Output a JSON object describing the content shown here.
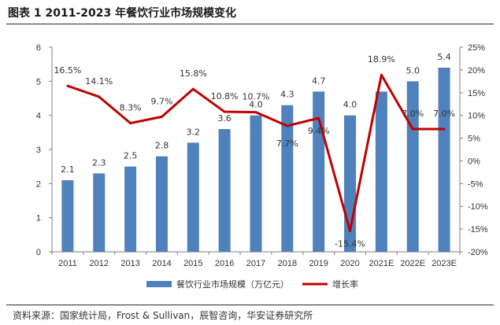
{
  "page": {
    "title": "图表 1 2011-2023 年餐饮行业市场规模变化",
    "source": "资料来源：国家统计局，Frost & Sullivan，辰智咨询，华安证券研究所"
  },
  "chart_data": {
    "type": "bar",
    "categories": [
      "2011",
      "2012",
      "2013",
      "2014",
      "2015",
      "2016",
      "2017",
      "2018",
      "2019",
      "2020",
      "2021E",
      "2022E",
      "2023E"
    ],
    "series": [
      {
        "name": "餐饮行业市场规模（万亿元）",
        "type": "bar",
        "axis": "left",
        "color": "#4f81bd",
        "values": [
          2.1,
          2.3,
          2.5,
          2.8,
          3.2,
          3.6,
          4.0,
          4.3,
          4.7,
          4.0,
          4.7,
          5.0,
          5.4
        ],
        "labels": [
          "2.1",
          "2.3",
          "2.5",
          "2.8",
          "3.2",
          "3.6",
          "4.0",
          "4.3",
          "4.7",
          "4.0",
          "",
          "5.0",
          "5.4"
        ]
      },
      {
        "name": "增长率",
        "type": "line",
        "axis": "right",
        "color": "#c00000",
        "values": [
          16.5,
          14.1,
          8.3,
          9.7,
          15.8,
          10.8,
          10.7,
          7.7,
          9.4,
          -15.4,
          18.9,
          7.0,
          7.0
        ],
        "labels": [
          "16.5%",
          "14.1%",
          "8.3%",
          "9.7%",
          "15.8%",
          "10.8%",
          "10.7%",
          "7.7%",
          "9.4%",
          "-15.4%",
          "18.9%",
          "7.0%",
          "7.0%"
        ]
      }
    ],
    "y_left": {
      "ylim": [
        0,
        6
      ],
      "ticks": [
        "0",
        "1",
        "2",
        "3",
        "4",
        "5",
        "6"
      ]
    },
    "y_right": {
      "ylim": [
        -20,
        25
      ],
      "ticks": [
        "-20%",
        "-15%",
        "-10%",
        "-5%",
        "0%",
        "5%",
        "10%",
        "15%",
        "20%",
        "25%"
      ]
    },
    "grid": false,
    "legend_position": "bottom"
  }
}
